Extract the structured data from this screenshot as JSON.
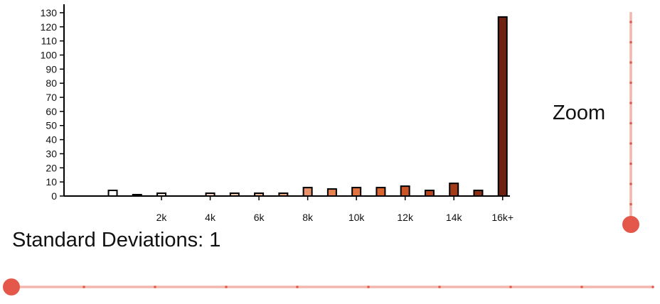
{
  "chart_data": {
    "type": "bar",
    "title": "",
    "xlabel": "",
    "ylabel": "",
    "y_ticks": [
      "0",
      "10",
      "20",
      "30",
      "40",
      "50",
      "60",
      "70",
      "80",
      "90",
      "100",
      "110",
      "120",
      "130"
    ],
    "x_ticks": [
      "2k",
      "4k",
      "6k",
      "8k",
      "10k",
      "12k",
      "14k",
      "16k+"
    ],
    "x_tick_values": [
      2000,
      4000,
      6000,
      8000,
      10000,
      12000,
      14000,
      16000
    ],
    "ylim": [
      0,
      136
    ],
    "xlim": [
      -2000,
      16300
    ],
    "grid": false,
    "bins": [
      {
        "x": 0,
        "value": 4,
        "color": "#ffffff"
      },
      {
        "x": 1000,
        "value": 1,
        "color": "#fbeee6"
      },
      {
        "x": 2000,
        "value": 2,
        "color": "#fbe8dc"
      },
      {
        "x": 3000,
        "value": 0,
        "color": "#fbe2d2"
      },
      {
        "x": 4000,
        "value": 2,
        "color": "#f9d8c4"
      },
      {
        "x": 5000,
        "value": 2,
        "color": "#f6ccb2"
      },
      {
        "x": 6000,
        "value": 2,
        "color": "#f2bd9e"
      },
      {
        "x": 7000,
        "value": 2,
        "color": "#eeaa85"
      },
      {
        "x": 8000,
        "value": 6,
        "color": "#e9926a"
      },
      {
        "x": 9000,
        "value": 5,
        "color": "#e5824f"
      },
      {
        "x": 10000,
        "value": 6,
        "color": "#e07440"
      },
      {
        "x": 11000,
        "value": 6,
        "color": "#d96430"
      },
      {
        "x": 12000,
        "value": 7,
        "color": "#cc5526"
      },
      {
        "x": 13000,
        "value": 4,
        "color": "#b8461e"
      },
      {
        "x": 14000,
        "value": 9,
        "color": "#a23b18"
      },
      {
        "x": 15000,
        "value": 4,
        "color": "#8c3214"
      },
      {
        "x": 16000,
        "value": 127,
        "color": "#6e2411"
      }
    ]
  },
  "controls": {
    "std_dev_label": "Standard Deviations: 1",
    "std_dev_value": 0,
    "zoom_label": "Zoom",
    "zoom_value": 0,
    "slider_color": "#e3584a",
    "slider_track_color": "#f2b6ae"
  }
}
